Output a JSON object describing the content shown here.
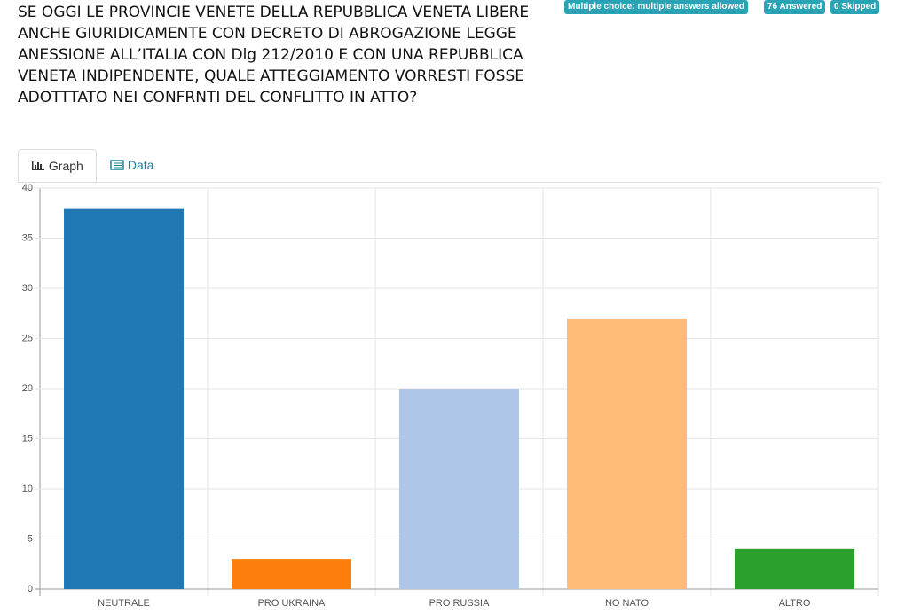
{
  "question": {
    "lines": [
      "SE OGGI LE PROVINCIE VENETE DELLA REPUBBLICA VENETA LIBERE",
      "ANCHE GIURIDICAMENTE CON DECRETO DI ABROGAZIONE LEGGE",
      "ANESSIONE ALL’ITALIA CON Dlg 212/2010 E CON UNA REPUBBLICA",
      "VENETA INDIPENDENTE, QUALE ATTEGGIAMENTO VORRESTI FOSSE",
      "ADOTTTATO NEI CONFRNTI DEL CONFLITTO IN ATTO?"
    ]
  },
  "badges": [
    "Multiple choice: multiple answers allowed",
    "76 Answered",
    "0 Skipped"
  ],
  "tabs": [
    "Graph",
    "Data"
  ],
  "chart_data": {
    "type": "bar",
    "categories": [
      "NEUTRALE",
      "PRO UKRAINA",
      "PRO RUSSIA",
      "NO NATO",
      "ALTRO"
    ],
    "values": [
      38,
      3,
      20,
      27,
      4
    ],
    "colors": [
      "#1f77b4",
      "#ff7f0e",
      "#aec7e8",
      "#ffbb78",
      "#2ca02c"
    ],
    "ylim": [
      0,
      40
    ],
    "yticks": [
      0,
      5,
      10,
      15,
      20,
      25,
      30,
      35,
      40
    ],
    "grid": true
  }
}
